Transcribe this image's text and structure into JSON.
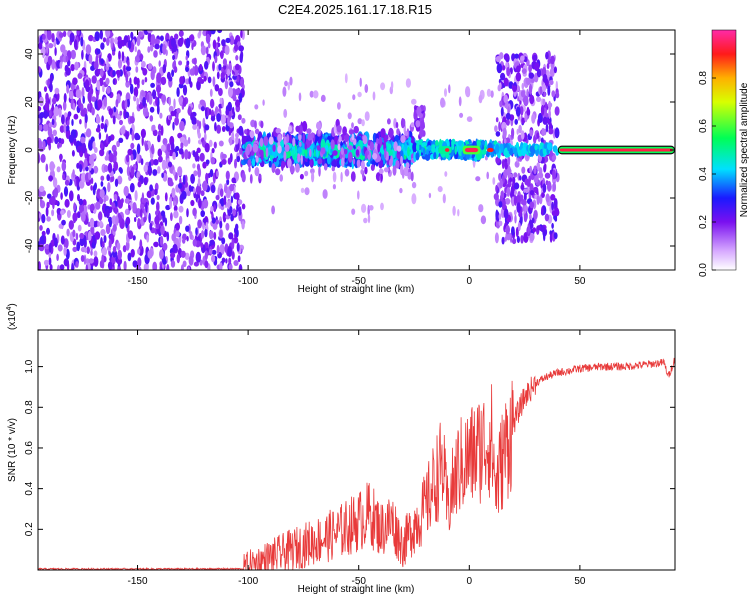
{
  "title": "C2E4.2025.161.17.18.R15",
  "chart_data": [
    {
      "type": "heatmap",
      "xlabel": "Height of straight line (km)",
      "ylabel": "Frequency (Hz)",
      "xlim": [
        -195,
        93
      ],
      "ylim": [
        -50,
        50
      ],
      "xticks": [
        -150,
        -100,
        -50,
        0,
        50
      ],
      "yticks": [
        -40,
        -20,
        0,
        20,
        40
      ],
      "colorbar": {
        "label": "Normalized spectral amplitude",
        "ticks": [
          0.0,
          0.2,
          0.4,
          0.6,
          0.8
        ],
        "range": [
          0,
          1
        ]
      },
      "regions": [
        {
          "x": [
            -195,
            -102
          ],
          "freq": [
            -50,
            50
          ],
          "level": "noise 0.1-0.25"
        },
        {
          "x": [
            -102,
            -25
          ],
          "freq": [
            -6,
            6
          ],
          "level": "0.3-0.5 band around 0 Hz"
        },
        {
          "x": [
            -25,
            12
          ],
          "freq": [
            -3,
            3
          ],
          "level": "0.4-1.0 narrow line at 0 Hz"
        },
        {
          "x": [
            12,
            40
          ],
          "freq": [
            -38,
            40
          ],
          "level": "noise 0.1-0.25, 0 Hz line 0.4"
        },
        {
          "x": [
            40,
            93
          ],
          "freq": [
            -1.5,
            1.5
          ],
          "level": "1.0 single line at 0 Hz"
        }
      ]
    },
    {
      "type": "line",
      "xlabel": "Height of straight line (km)",
      "ylabel": "SNR (10 * v/v)",
      "multiplier": "(x10",
      "multiplier_exp": "4",
      "xlim": [
        -195,
        93
      ],
      "ylim": [
        0,
        1.18
      ],
      "xticks": [
        -150,
        -100,
        -50,
        0,
        50
      ],
      "yticks": [
        0.2,
        0.4,
        0.6,
        0.8,
        1.0
      ],
      "color": "#e83a3a",
      "x": [
        -195,
        -150,
        -120,
        -102,
        -100,
        -90,
        -80,
        -70,
        -60,
        -50,
        -45,
        -40,
        -35,
        -30,
        -25,
        -20,
        -15,
        -12,
        -10,
        -5,
        0,
        5,
        10,
        12,
        15,
        20,
        25,
        30,
        35,
        40,
        45,
        50,
        60,
        70,
        80,
        88,
        90,
        93
      ],
      "y": [
        0.005,
        0.005,
        0.005,
        0.006,
        0.02,
        0.06,
        0.1,
        0.14,
        0.18,
        0.24,
        0.28,
        0.2,
        0.24,
        0.12,
        0.22,
        0.3,
        0.45,
        0.52,
        0.3,
        0.5,
        0.55,
        0.6,
        0.65,
        0.4,
        0.55,
        0.72,
        0.85,
        0.92,
        0.95,
        0.97,
        0.98,
        0.99,
        1.0,
        1.0,
        1.01,
        1.02,
        0.95,
        1.04
      ]
    }
  ]
}
